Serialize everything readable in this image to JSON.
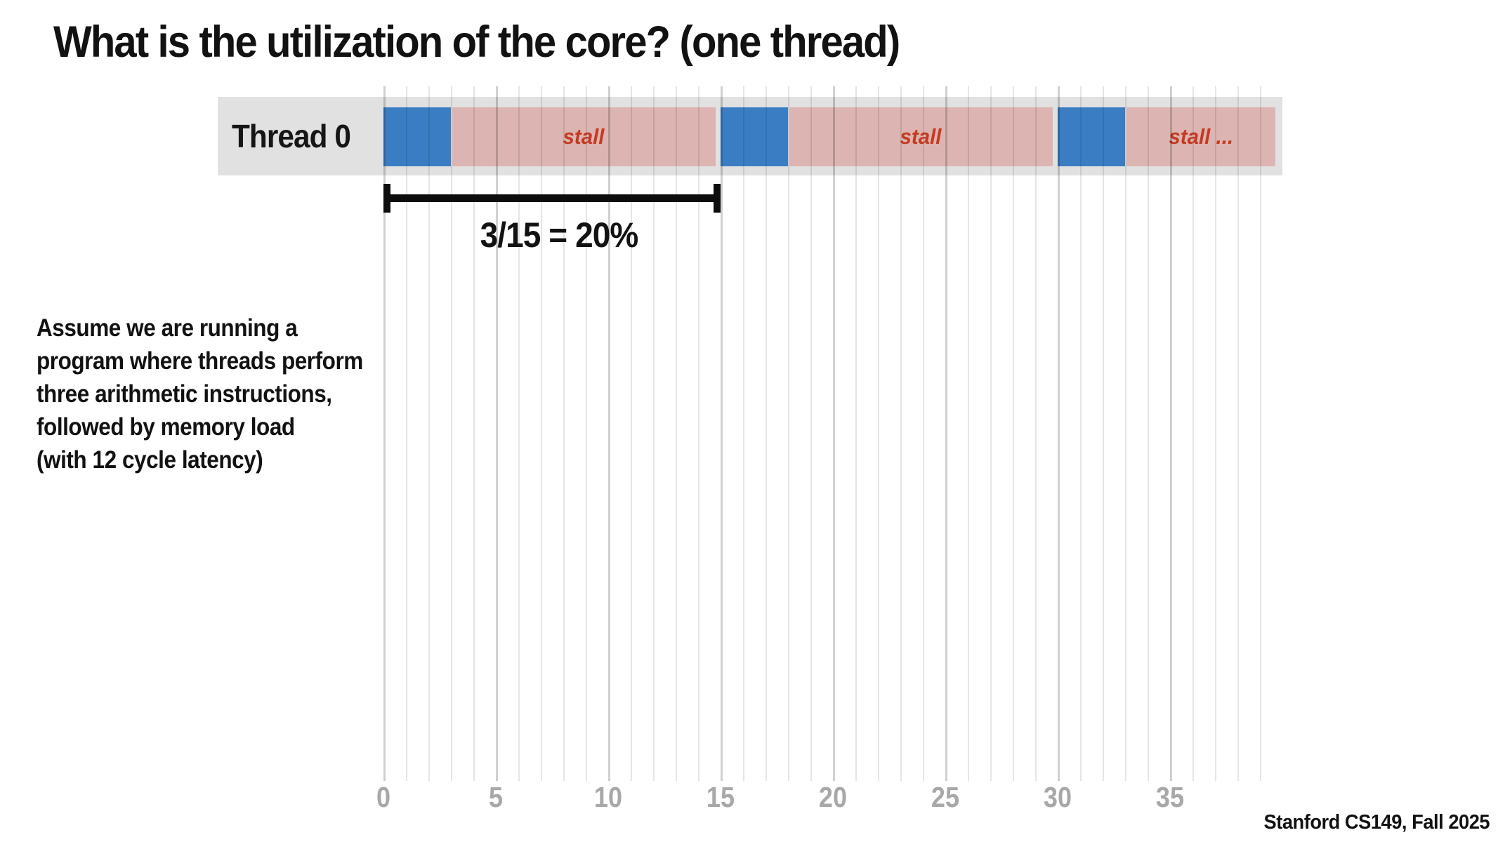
{
  "title": "What is the utilization of the core? (one thread)",
  "thread_label": "Thread 0",
  "assumption_text": "Assume we are running a\nprogram where threads perform\nthree arithmetic instructions,\nfollowed by memory load\n(with 12 cycle latency)",
  "footer": "Stanford CS149, Fall 2025",
  "colors": {
    "busy_fill": "#3b7dc3",
    "stall_fill": "#dcb5b2",
    "stall_text": "#c43a22",
    "band_fill": "#e1e1e1",
    "axis_label": "#a8a8a8",
    "text": "#121212"
  },
  "chart_data": {
    "type": "timeline",
    "title": "Thread 0 execution timeline",
    "x_range": [
      0,
      40
    ],
    "x_ticks": [
      0,
      5,
      10,
      15,
      20,
      25,
      30,
      35
    ],
    "gridline_count": 40,
    "grid_major_every": 5,
    "thread": "Thread 0",
    "segments": [
      {
        "type": "busy",
        "start": 0,
        "end": 3,
        "label": ""
      },
      {
        "type": "stall",
        "start": 3,
        "end": 15,
        "label": "stall"
      },
      {
        "type": "busy",
        "start": 15,
        "end": 18,
        "label": ""
      },
      {
        "type": "stall",
        "start": 18,
        "end": 30,
        "label": "stall"
      },
      {
        "type": "busy",
        "start": 30,
        "end": 33,
        "label": ""
      },
      {
        "type": "stall",
        "start": 33,
        "end": 39.9,
        "label": "stall ..."
      }
    ],
    "bracket": {
      "start": 0,
      "end": 15,
      "label": "3/15 = 20%"
    }
  }
}
